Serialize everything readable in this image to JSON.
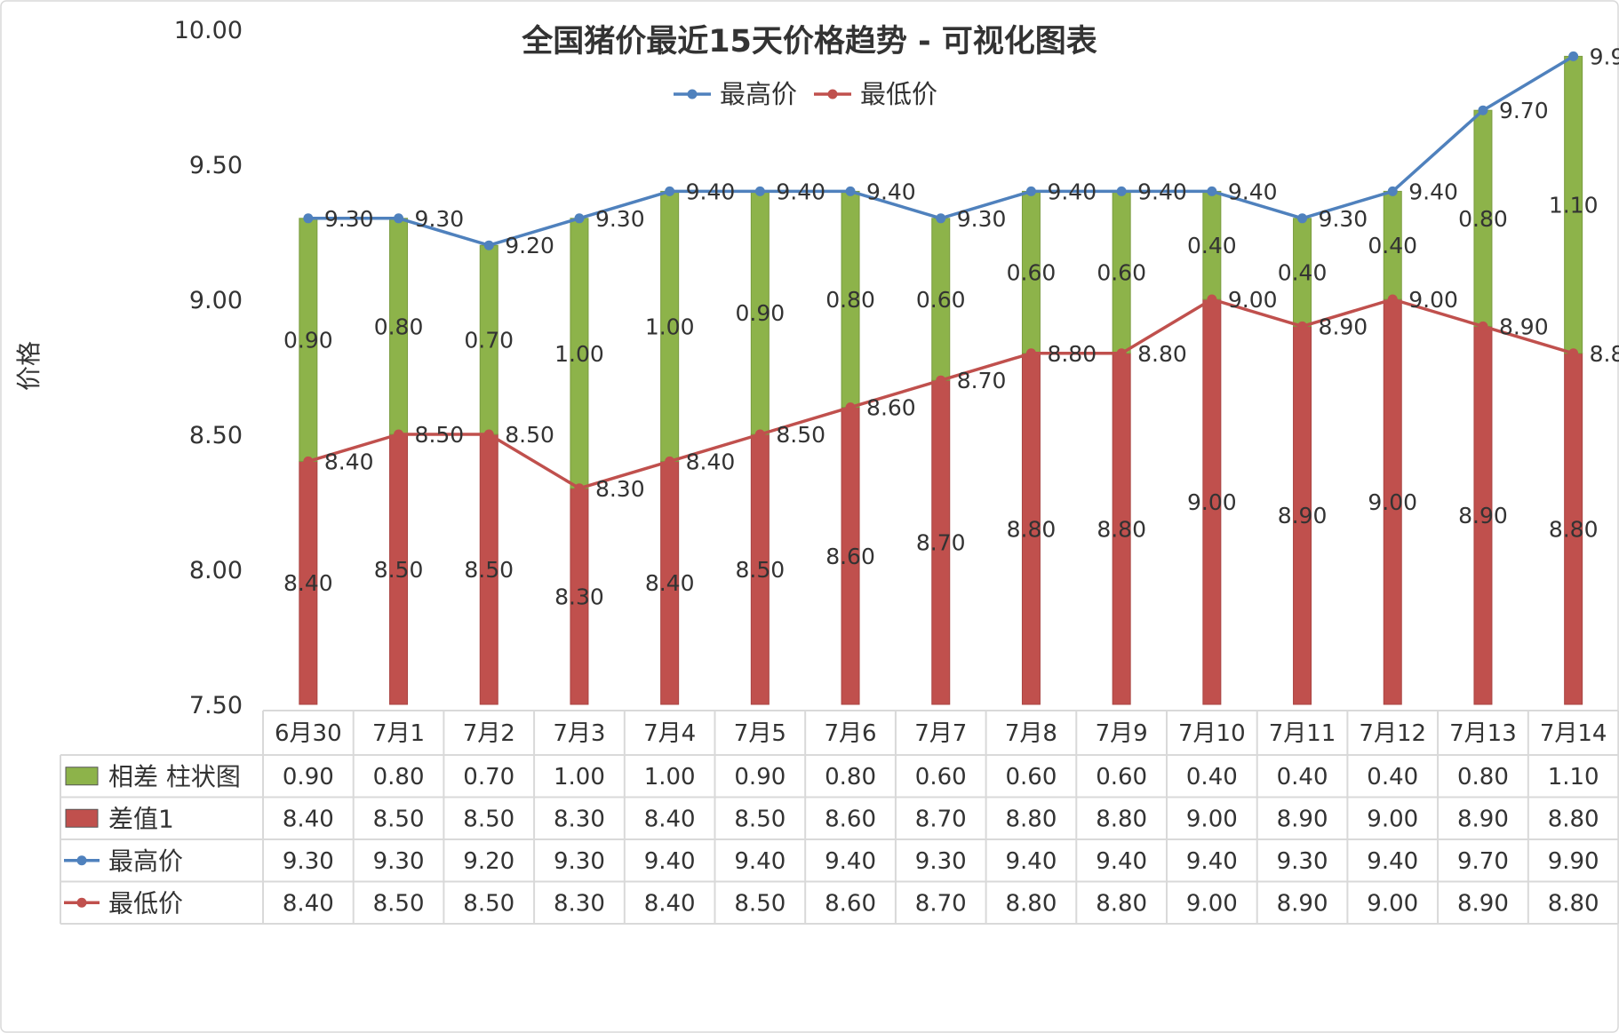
{
  "chart_data": {
    "type": "bar",
    "title": "全国猪价最近15天价格趋势 - 可视化图表",
    "ylabel": "价格",
    "ylim": [
      7.5,
      10.0
    ],
    "yticks": [
      "7.50",
      "8.00",
      "8.50",
      "9.00",
      "9.50",
      "10.00"
    ],
    "grid": false,
    "legend_position": "top",
    "categories": [
      "6月30",
      "7月1",
      "7月2",
      "7月3",
      "7月4",
      "7月5",
      "7月6",
      "7月7",
      "7月8",
      "7月9",
      "7月10",
      "7月11",
      "7月12",
      "7月13",
      "7月14"
    ],
    "series": [
      {
        "name": "相差 柱状图",
        "kind": "stacked-bar",
        "color": "#8db34a",
        "values": [
          0.9,
          0.8,
          0.7,
          1.0,
          1.0,
          0.9,
          0.8,
          0.6,
          0.6,
          0.6,
          0.4,
          0.4,
          0.4,
          0.8,
          1.1
        ],
        "labels": [
          "0.90",
          "0.80",
          "0.70",
          "1.00",
          "1.00",
          "0.90",
          "0.80",
          "0.60",
          "0.60",
          "0.60",
          "0.40",
          "0.40",
          "0.40",
          "0.80",
          "1.10"
        ]
      },
      {
        "name": "差值1",
        "kind": "stacked-bar",
        "color": "#c0504d",
        "values": [
          8.4,
          8.5,
          8.5,
          8.3,
          8.4,
          8.5,
          8.6,
          8.7,
          8.8,
          8.8,
          9.0,
          8.9,
          9.0,
          8.9,
          8.8
        ],
        "labels": [
          "8.40",
          "8.50",
          "8.50",
          "8.30",
          "8.40",
          "8.50",
          "8.60",
          "8.70",
          "8.80",
          "8.80",
          "9.00",
          "8.90",
          "9.00",
          "8.90",
          "8.80"
        ]
      },
      {
        "name": "最高价",
        "kind": "line",
        "color": "#4f81bd",
        "values": [
          9.3,
          9.3,
          9.2,
          9.3,
          9.4,
          9.4,
          9.4,
          9.3,
          9.4,
          9.4,
          9.4,
          9.3,
          9.4,
          9.7,
          9.9
        ],
        "labels": [
          "9.30",
          "9.30",
          "9.20",
          "9.30",
          "9.40",
          "9.40",
          "9.40",
          "9.30",
          "9.40",
          "9.40",
          "9.40",
          "9.30",
          "9.40",
          "9.70",
          "9.90"
        ]
      },
      {
        "name": "最低价",
        "kind": "line",
        "color": "#c0504d",
        "values": [
          8.4,
          8.5,
          8.5,
          8.3,
          8.4,
          8.5,
          8.6,
          8.7,
          8.8,
          8.8,
          9.0,
          8.9,
          9.0,
          8.9,
          8.8
        ],
        "labels": [
          "8.40",
          "8.50",
          "8.50",
          "8.30",
          "8.40",
          "8.50",
          "8.60",
          "8.70",
          "8.80",
          "8.80",
          "9.00",
          "8.90",
          "9.00",
          "8.90",
          "8.80"
        ]
      }
    ],
    "legend": [
      "最高价",
      "最低价"
    ]
  }
}
